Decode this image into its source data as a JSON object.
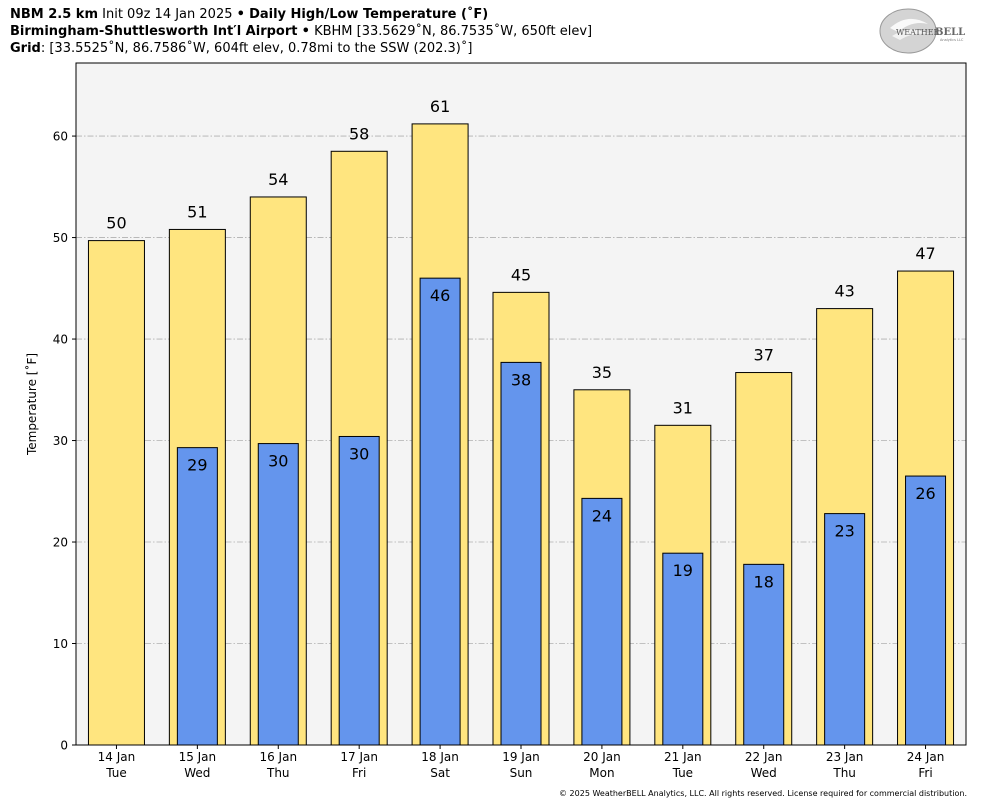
{
  "header": {
    "line1": {
      "model": "NBM 2.5 km",
      "init": "Init 09z 14 Jan 2025",
      "sep": "•",
      "product": "Daily High/Low Temperature (˚F)"
    },
    "line2": {
      "station": "Birmingham-Shuttlesworth Int′l Airport",
      "sep": "•",
      "details": "KBHM [33.5629˚N, 86.7535˚W, 650ft elev]"
    },
    "line3": {
      "label": "Grid",
      "details": ": [33.5525˚N, 86.7586˚W, 604ft elev, 0.78mi to the SSW (202.3)˚]"
    }
  },
  "logo": {
    "text_main": "WEATHER",
    "text_bell": "BELL",
    "text_sub": "Analytics LLC"
  },
  "copyright": "© 2025 WeatherBELL Analytics, LLC. All rights reserved. License required for commercial distribution.",
  "colors": {
    "high": "#ffe57f",
    "low": "#6495ed",
    "plot_bg": "#f4f4f4",
    "grid": "#b0b0b0"
  },
  "chart_data": {
    "type": "bar",
    "ylabel": "Temperature [˚F]",
    "ylim": [
      0,
      67.2
    ],
    "yticks": [
      0,
      10,
      20,
      30,
      40,
      50,
      60
    ],
    "grid": true,
    "categories": [
      [
        "14 Jan",
        "Tue"
      ],
      [
        "15 Jan",
        "Wed"
      ],
      [
        "16 Jan",
        "Thu"
      ],
      [
        "17 Jan",
        "Fri"
      ],
      [
        "18 Jan",
        "Sat"
      ],
      [
        "19 Jan",
        "Sun"
      ],
      [
        "20 Jan",
        "Mon"
      ],
      [
        "21 Jan",
        "Tue"
      ],
      [
        "22 Jan",
        "Wed"
      ],
      [
        "23 Jan",
        "Thu"
      ],
      [
        "24 Jan",
        "Fri"
      ]
    ],
    "series": [
      {
        "key": "high",
        "values": [
          49.7,
          50.8,
          54.0,
          58.5,
          61.2,
          44.6,
          35.0,
          31.5,
          36.7,
          43.0,
          46.7
        ],
        "labels": [
          "50",
          "51",
          "54",
          "58",
          "61",
          "45",
          "35",
          "31",
          "37",
          "43",
          "47"
        ]
      },
      {
        "key": "low",
        "values": [
          null,
          29.3,
          29.7,
          30.4,
          46.0,
          37.7,
          24.3,
          18.9,
          17.8,
          22.8,
          26.5
        ],
        "labels": [
          null,
          "29",
          "30",
          "30",
          "46",
          "38",
          "24",
          "19",
          "18",
          "23",
          "26"
        ]
      }
    ]
  }
}
